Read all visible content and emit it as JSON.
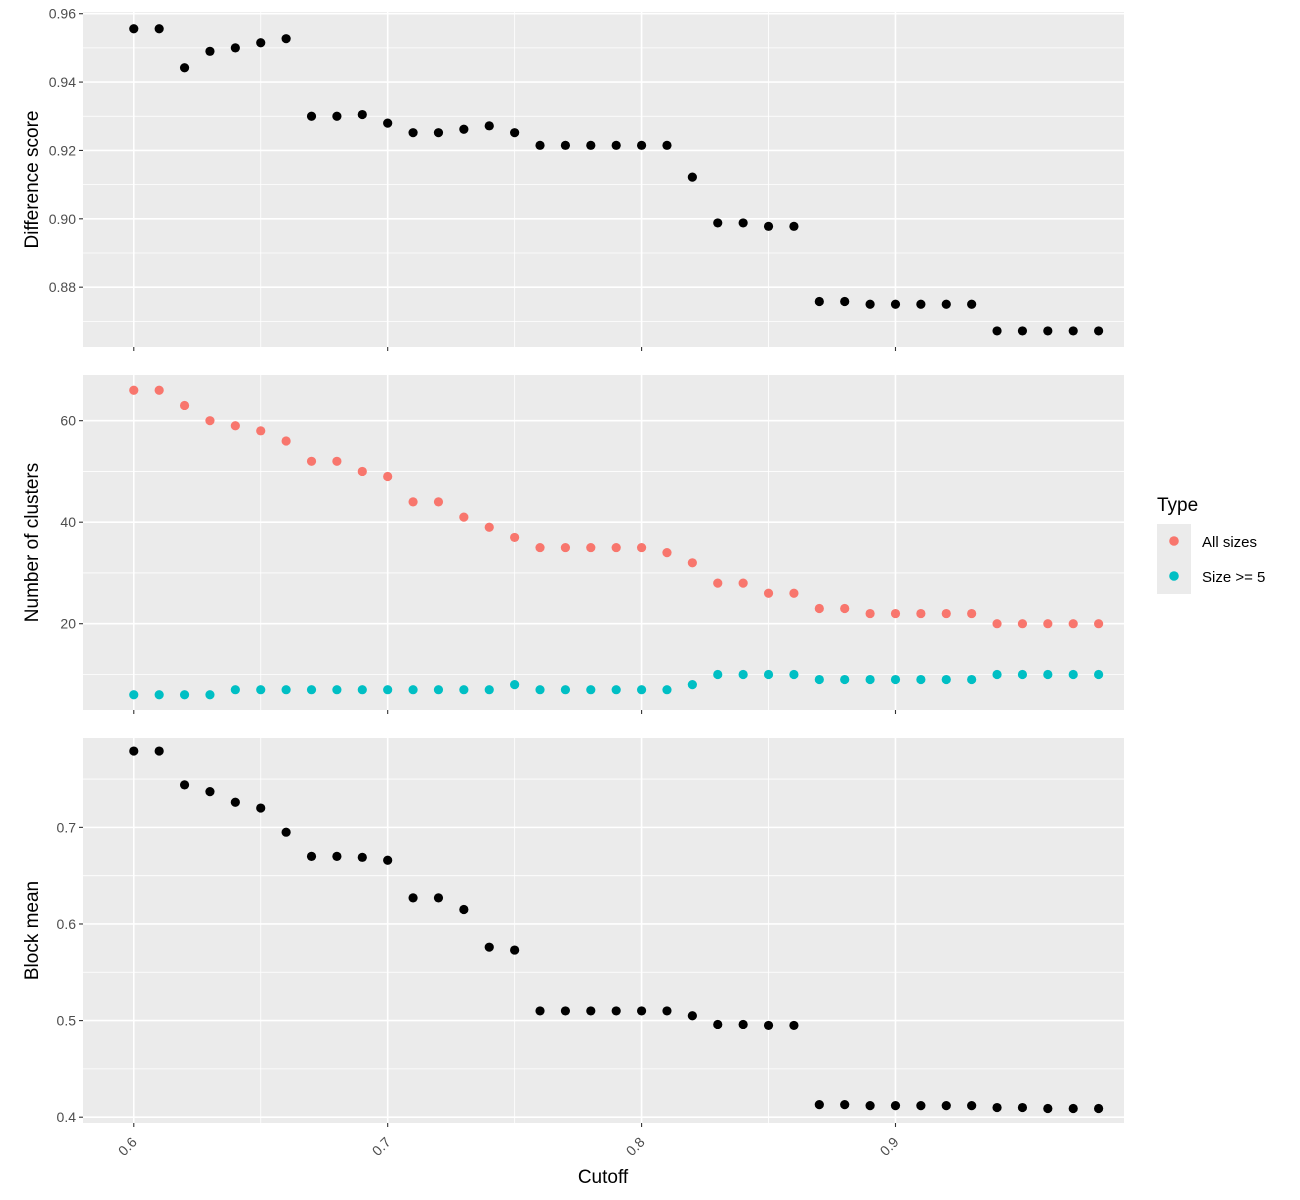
{
  "chart_data": {
    "type": "scatter",
    "xlabel": "Cutoff",
    "x_ticks": [
      0.6,
      0.7,
      0.8,
      0.9
    ],
    "x_tick_labels": [
      "0.6",
      "0.7",
      "0.8",
      "0.9"
    ],
    "xlim": [
      0.58,
      0.99
    ],
    "x": [
      0.6,
      0.61,
      0.62,
      0.63,
      0.64,
      0.65,
      0.66,
      0.67,
      0.68,
      0.69,
      0.7,
      0.71,
      0.72,
      0.73,
      0.74,
      0.75,
      0.76,
      0.77,
      0.78,
      0.79,
      0.8,
      0.81,
      0.82,
      0.83,
      0.84,
      0.85,
      0.86,
      0.87,
      0.88,
      0.89,
      0.9,
      0.91,
      0.92,
      0.93,
      0.94,
      0.95,
      0.96,
      0.97,
      0.98
    ],
    "panels": [
      {
        "ylabel": "Difference score",
        "ylim": [
          0.8625,
          0.9605
        ],
        "y_ticks": [
          0.88,
          0.9,
          0.92,
          0.94,
          0.96
        ],
        "y_tick_labels": [
          "0.88",
          "0.90",
          "0.92",
          "0.94",
          "0.96"
        ],
        "series": [
          {
            "color": "#000000",
            "values": [
              0.9556,
              0.9556,
              0.9442,
              0.949,
              0.95,
              0.9515,
              0.9527,
              0.93,
              0.93,
              0.9305,
              0.928,
              0.9252,
              0.9252,
              0.9262,
              0.9272,
              0.9252,
              0.9215,
              0.9215,
              0.9215,
              0.9215,
              0.9215,
              0.9215,
              0.9122,
              0.8988,
              0.8988,
              0.8978,
              0.8978,
              0.8758,
              0.8758,
              0.875,
              0.875,
              0.875,
              0.875,
              0.875,
              0.8672,
              0.8672,
              0.8672,
              0.8672,
              0.8672
            ]
          }
        ]
      },
      {
        "ylabel": "Number of clusters",
        "ylim": [
          3,
          69
        ],
        "y_ticks": [
          20,
          40,
          60
        ],
        "y_tick_labels": [
          "20",
          "40",
          "60"
        ],
        "series": [
          {
            "name": "All sizes",
            "color": "#F8766D",
            "values": [
              66,
              66,
              63,
              60,
              59,
              58,
              56,
              52,
              52,
              50,
              49,
              44,
              44,
              41,
              39,
              37,
              35,
              35,
              35,
              35,
              35,
              34,
              32,
              28,
              28,
              26,
              26,
              23,
              23,
              22,
              22,
              22,
              22,
              22,
              20,
              20,
              20,
              20,
              20
            ]
          },
          {
            "name": "Size >= 5",
            "color": "#00BFC4",
            "values": [
              6,
              6,
              6,
              6,
              7,
              7,
              7,
              7,
              7,
              7,
              7,
              7,
              7,
              7,
              7,
              8,
              7,
              7,
              7,
              7,
              7,
              7,
              8,
              10,
              10,
              10,
              10,
              9,
              9,
              9,
              9,
              9,
              9,
              9,
              10,
              10,
              10,
              10,
              10
            ]
          }
        ]
      },
      {
        "ylabel": "Block mean",
        "ylim": [
          0.394,
          0.7925
        ],
        "y_ticks": [
          0.4,
          0.5,
          0.6,
          0.7
        ],
        "y_tick_labels": [
          "0.4",
          "0.5",
          "0.6",
          "0.7"
        ],
        "series": [
          {
            "color": "#000000",
            "values": [
              0.779,
              0.779,
              0.744,
              0.737,
              0.726,
              0.72,
              0.695,
              0.67,
              0.67,
              0.669,
              0.666,
              0.627,
              0.627,
              0.615,
              0.576,
              0.573,
              0.51,
              0.51,
              0.51,
              0.51,
              0.51,
              0.51,
              0.505,
              0.496,
              0.496,
              0.495,
              0.495,
              0.413,
              0.413,
              0.412,
              0.412,
              0.412,
              0.412,
              0.412,
              0.41,
              0.41,
              0.409,
              0.409,
              0.409
            ]
          }
        ]
      }
    ],
    "legend": {
      "title": "Type",
      "position": "right",
      "entries": [
        {
          "label": "All sizes",
          "color": "#F8766D"
        },
        {
          "label": "Size >= 5",
          "color": "#00BFC4"
        }
      ]
    },
    "grid": true
  }
}
